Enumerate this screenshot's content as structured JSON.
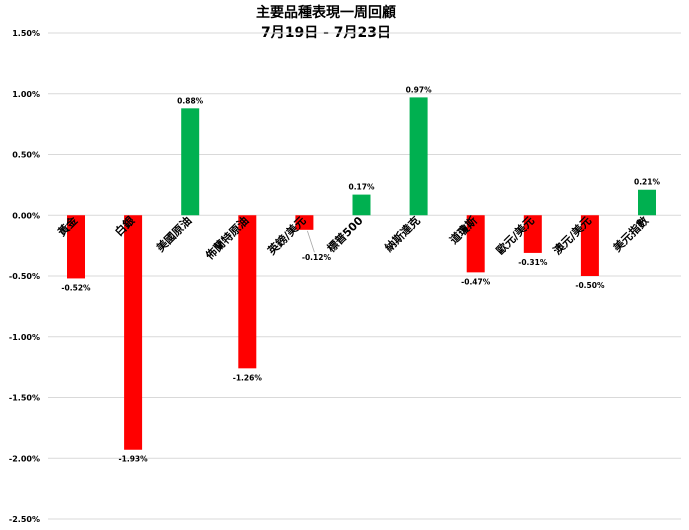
{
  "chart_data": {
    "type": "bar",
    "title": "主要品種表現一周回顧",
    "subtitle": "7月19日 - 7月23日",
    "categories": [
      "黃金",
      "白銀",
      "美國原油",
      "佈蘭特原油",
      "英鎊/美元",
      "標普500",
      "納斯達克",
      "道瓊斯",
      "歐元/美元",
      "澳元/美元",
      "美元指數"
    ],
    "values": [
      -0.52,
      -1.93,
      0.88,
      -1.26,
      -0.12,
      0.17,
      0.97,
      -0.47,
      -0.31,
      -0.5,
      0.21
    ],
    "data_labels": [
      "-0.52%",
      "-1.93%",
      "0.88%",
      "-1.26%",
      "-0.12%",
      "0.17%",
      "0.97%",
      "-0.47%",
      "-0.31%",
      "-0.50%",
      "0.21%"
    ],
    "y_ticks": [
      1.5,
      1.0,
      0.5,
      0.0,
      -0.5,
      -1.0,
      -1.5,
      -2.0,
      -2.5
    ],
    "y_tick_labels": [
      "1.50%",
      "1.00%",
      "0.50%",
      "0.00%",
      "-0.50%",
      "-1.00%",
      "-1.50%",
      "-2.00%",
      "-2.50%"
    ],
    "ylim": [
      -2.5,
      1.5
    ],
    "grid": true,
    "legend": "none",
    "colors": {
      "positive": "#00b050",
      "negative": "#ff0000",
      "grid": "#d9d9d9",
      "leader": "#a6a6a6"
    }
  }
}
